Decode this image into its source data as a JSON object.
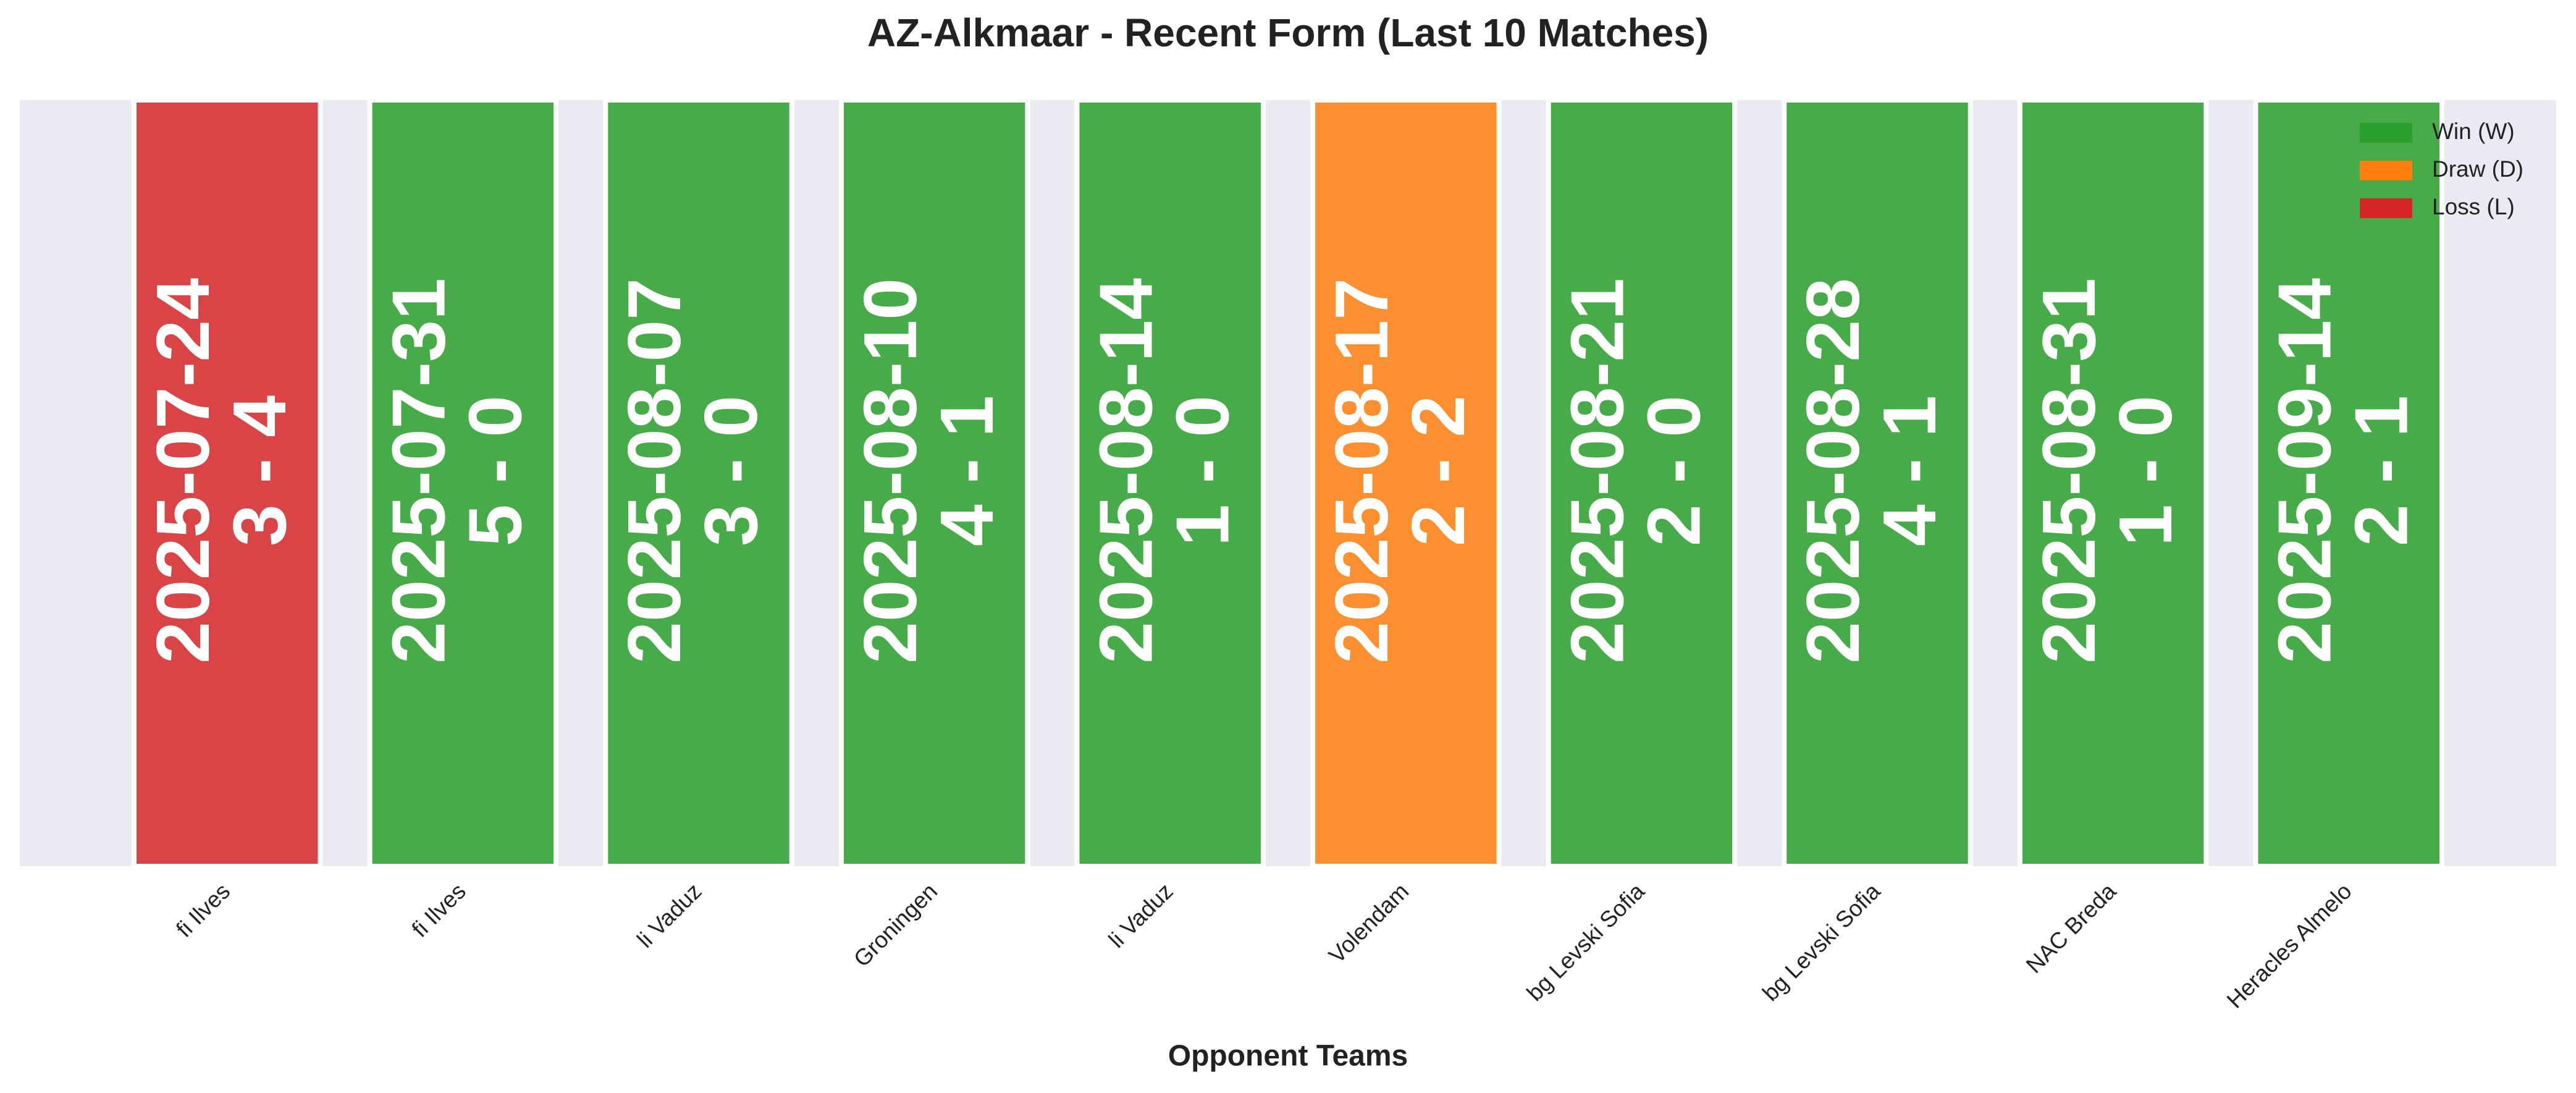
{
  "chart_data": {
    "type": "bar",
    "title": "AZ-Alkmaar - Recent Form (Last 10 Matches)",
    "xlabel": "Opponent Teams",
    "categories": [
      "fi Ilves",
      "fi Ilves",
      "li Vaduz",
      "Groningen",
      "li Vaduz",
      "Volendam",
      "bg Levski Sofia",
      "bg Levski Sofia",
      "NAC Breda",
      "Heracles Almelo"
    ],
    "values": [
      1,
      1,
      1,
      1,
      1,
      1,
      1,
      1,
      1,
      1
    ],
    "dates": [
      "2025-07-24",
      "2025-07-31",
      "2025-08-07",
      "2025-08-10",
      "2025-08-14",
      "2025-08-17",
      "2025-08-21",
      "2025-08-28",
      "2025-08-31",
      "2025-09-14"
    ],
    "scores": [
      "3 - 4",
      "5 - 0",
      "3 - 0",
      "4 - 1",
      "1 - 0",
      "2 - 2",
      "2 - 0",
      "4 - 1",
      "1 - 0",
      "2 - 1"
    ],
    "colors": [
      "#d62728",
      "#2ca02c",
      "#2ca02c",
      "#2ca02c",
      "#2ca02c",
      "#ff7f0e",
      "#2ca02c",
      "#2ca02c",
      "#2ca02c",
      "#2ca02c"
    ],
    "ylim": [
      0,
      1
    ],
    "legend": [
      {
        "name": "Win (W)",
        "color": "#2ca02c"
      },
      {
        "name": "Draw (D)",
        "color": "#ff7f0e"
      },
      {
        "name": "Loss (L)",
        "color": "#d62728"
      }
    ],
    "legend_position": "upper right"
  }
}
